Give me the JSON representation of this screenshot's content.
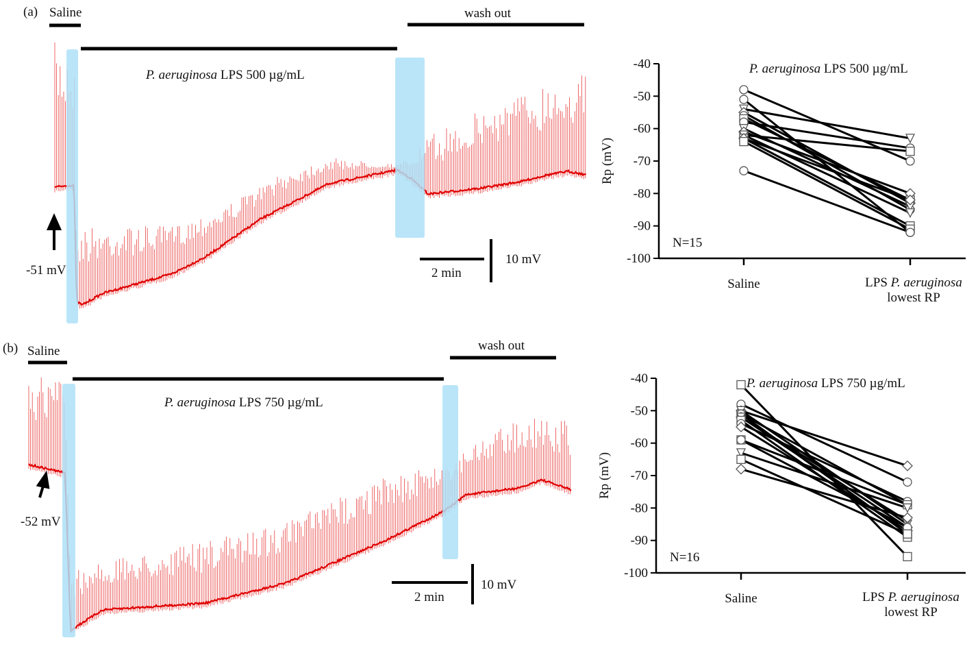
{
  "panels": [
    {
      "label": "(a)",
      "saline_label": "Saline",
      "washout_label": "wash out",
      "treatment_italic": "P. aeruginosa",
      "treatment_rest": " LPS 500 µg/mL",
      "resting_potential_label": "-51 mV",
      "time_scale_label": "2 min",
      "voltage_scale_label": "10 mV",
      "highlight_color": "#aee0f7",
      "trace_color": "#e00000"
    },
    {
      "label": "(b)",
      "saline_label": "Saline",
      "washout_label": "wash out",
      "treatment_italic": "P. aeruginosa",
      "treatment_rest": " LPS 750 µg/mL",
      "resting_potential_label": "-52 mV",
      "time_scale_label": "2 min",
      "voltage_scale_label": "10 mV",
      "highlight_color": "#aee0f7",
      "trace_color": "#e00000"
    }
  ],
  "chart_data": [
    {
      "type": "line",
      "title_italic": "P. aeruginosa",
      "title_rest": " LPS 500 µg/mL",
      "ylabel": "Rp (mV)",
      "ylim": [
        -100,
        -40
      ],
      "yticks": [
        -40,
        -50,
        -60,
        -70,
        -80,
        -90,
        -100
      ],
      "categories": [
        "Saline",
        "LPS P. aeruginosa lowest RP"
      ],
      "category_labels": [
        [
          "Saline"
        ],
        [
          "LPS ",
          "P. aeruginosa",
          "lowest RP"
        ]
      ],
      "annotation": "N=15",
      "pairs": [
        [
          -48,
          -70
        ],
        [
          -51,
          -92
        ],
        [
          -54,
          -63
        ],
        [
          -55,
          -83
        ],
        [
          -56,
          -85
        ],
        [
          -57,
          -82
        ],
        [
          -58,
          -66
        ],
        [
          -60,
          -84
        ],
        [
          -61,
          -80
        ],
        [
          -62,
          -67
        ],
        [
          -62,
          -86
        ],
        [
          -63,
          -90
        ],
        [
          -63,
          -82
        ],
        [
          -64,
          -91
        ],
        [
          -73,
          -92
        ]
      ],
      "markers": [
        "circle",
        "circle",
        "triangle",
        "diamond",
        "circle",
        "square",
        "circle",
        "triangle",
        "diamond",
        "square",
        "triangle",
        "square",
        "diamond",
        "square",
        "circle"
      ]
    },
    {
      "type": "line",
      "title_italic": "P. aeruginosa",
      "title_rest": " LPS 750 µg/mL",
      "ylabel": "Rp (mV)",
      "ylim": [
        -100,
        -40
      ],
      "yticks": [
        -40,
        -50,
        -60,
        -70,
        -80,
        -90,
        -100
      ],
      "categories": [
        "Saline",
        "LPS P. aeruginosa lowest RP"
      ],
      "category_labels": [
        [
          "Saline"
        ],
        [
          "LPS ",
          "P. aeruginosa",
          "lowest RP"
        ]
      ],
      "annotation": "N=16",
      "pairs": [
        [
          -42,
          -95
        ],
        [
          -48,
          -72
        ],
        [
          -50,
          -67
        ],
        [
          -50,
          -85
        ],
        [
          -51,
          -88
        ],
        [
          -51,
          -79
        ],
        [
          -52,
          -86
        ],
        [
          -52,
          -84
        ],
        [
          -53,
          -89
        ],
        [
          -54,
          -78
        ],
        [
          -55,
          -87
        ],
        [
          -59,
          -79
        ],
        [
          -59,
          -86
        ],
        [
          -63,
          -80
        ],
        [
          -65,
          -88
        ],
        [
          -68,
          -83
        ]
      ],
      "markers": [
        "square",
        "circle",
        "diamond",
        "triangle",
        "square",
        "circle",
        "diamond",
        "triangle",
        "square",
        "circle",
        "diamond",
        "square",
        "circle",
        "triangle",
        "square",
        "diamond"
      ]
    }
  ]
}
